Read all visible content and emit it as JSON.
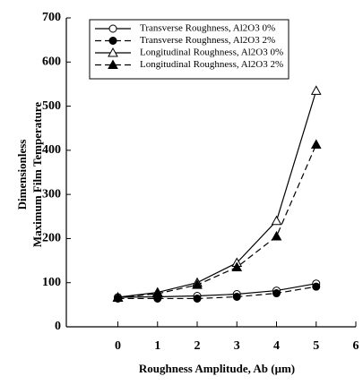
{
  "chart_data": {
    "type": "line",
    "xlabel": "Roughness Amplitude, Ab (μm)",
    "ylabel": [
      "Dimensionless",
      "Maximum Film Temperature"
    ],
    "x": [
      0,
      1,
      2,
      3,
      4,
      5
    ],
    "xlim": [
      -1.3,
      6
    ],
    "xticks": [
      0,
      1,
      2,
      3,
      4,
      5,
      6
    ],
    "ylim": [
      0,
      700
    ],
    "yticks": [
      0,
      100,
      200,
      300,
      400,
      500,
      600,
      700
    ],
    "legend": "top",
    "series": [
      {
        "name": "Transverse Roughness, Al2O3  0%",
        "color": "#000000",
        "marker": "circle-open",
        "linestyle": "solid",
        "values": [
          67,
          68,
          70,
          74,
          82,
          98
        ]
      },
      {
        "name": "Transverse Roughness, Al2O3  2%",
        "color": "#000000",
        "marker": "circle-filled",
        "linestyle": "dashed",
        "values": [
          64,
          64,
          64,
          68,
          76,
          91
        ]
      },
      {
        "name": "Longitudinal Roughness, Al2O3 0%",
        "color": "#000000",
        "marker": "triangle-open",
        "linestyle": "solid",
        "values": [
          67,
          78,
          100,
          145,
          240,
          535
        ]
      },
      {
        "name": "Longitudinal Roughness, Al2O3  2%",
        "color": "#000000",
        "marker": "triangle-filled",
        "linestyle": "dashed",
        "values": [
          66,
          75,
          95,
          135,
          205,
          413
        ]
      }
    ]
  }
}
